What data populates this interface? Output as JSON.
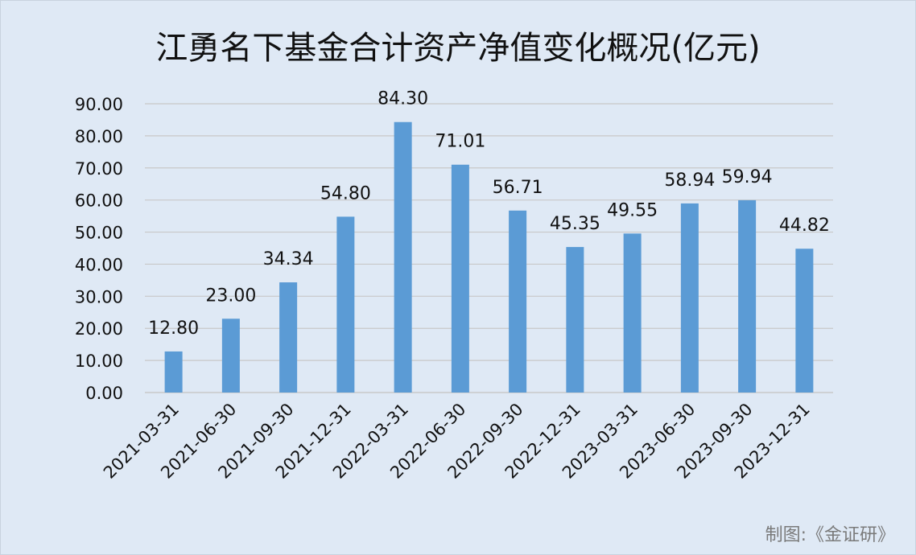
{
  "chart_data": {
    "type": "bar",
    "title": "江勇名下基金合计资产净值变化概况(亿元)",
    "xlabel": "",
    "ylabel": "",
    "ylim": [
      0,
      90
    ],
    "y_ticks": [
      "0.00",
      "10.00",
      "20.00",
      "30.00",
      "40.00",
      "50.00",
      "60.00",
      "70.00",
      "80.00",
      "90.00"
    ],
    "grid": true,
    "bar_color": "#5b9bd5",
    "categories": [
      "2021-03-31",
      "2021-06-30",
      "2021-09-30",
      "2021-12-31",
      "2022-03-31",
      "2022-06-30",
      "2022-09-30",
      "2022-12-31",
      "2023-03-31",
      "2023-06-30",
      "2023-09-30",
      "2023-12-31"
    ],
    "values": [
      12.8,
      23.0,
      34.34,
      54.8,
      84.3,
      71.01,
      56.71,
      45.35,
      49.55,
      58.94,
      59.94,
      44.82
    ],
    "value_labels": [
      "12.80",
      "23.00",
      "34.34",
      "54.80",
      "84.30",
      "71.01",
      "56.71",
      "45.35",
      "49.55",
      "58.94",
      "59.94",
      "44.82"
    ]
  },
  "credit": "制图:《金证研》"
}
